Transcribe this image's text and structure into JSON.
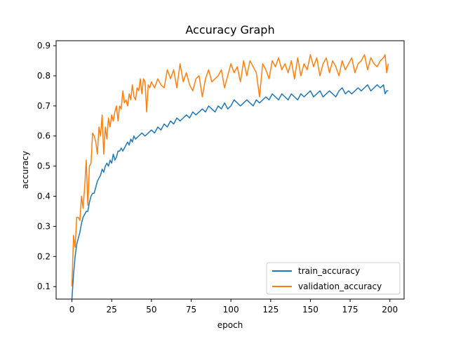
{
  "chart_data": {
    "type": "line",
    "title": "Accuracy Graph",
    "xlabel": "epoch",
    "ylabel": "accuracy",
    "xlim": [
      -9.95,
      208.95
    ],
    "ylim": [
      0.0585,
      0.9165
    ],
    "x_ticks": [
      0,
      25,
      50,
      75,
      100,
      125,
      150,
      175,
      200
    ],
    "y_ticks": [
      0.1,
      0.2,
      0.3,
      0.4,
      0.5,
      0.6,
      0.7,
      0.8,
      0.9
    ],
    "grid": false,
    "legend_position": "lower-right",
    "series": [
      {
        "name": "train_accuracy",
        "color": "#1f77b4",
        "x": [
          0,
          1,
          2,
          3,
          4,
          5,
          6,
          7,
          8,
          9,
          10,
          11,
          12,
          13,
          14,
          15,
          16,
          17,
          18,
          19,
          20,
          21,
          22,
          23,
          24,
          25,
          26,
          27,
          28,
          29,
          30,
          31,
          32,
          33,
          34,
          35,
          36,
          37,
          38,
          39,
          40,
          42,
          44,
          46,
          48,
          50,
          52,
          54,
          56,
          58,
          60,
          62,
          64,
          66,
          68,
          70,
          72,
          74,
          76,
          78,
          80,
          82,
          84,
          86,
          88,
          90,
          92,
          94,
          96,
          98,
          100,
          102,
          104,
          106,
          108,
          110,
          112,
          114,
          116,
          118,
          120,
          122,
          124,
          126,
          128,
          130,
          132,
          134,
          136,
          138,
          140,
          142,
          144,
          146,
          148,
          150,
          152,
          154,
          156,
          158,
          160,
          162,
          164,
          166,
          168,
          170,
          172,
          174,
          176,
          178,
          180,
          182,
          184,
          186,
          188,
          190,
          192,
          194,
          196,
          197,
          198,
          199
        ],
        "values": [
          0.06,
          0.14,
          0.2,
          0.24,
          0.26,
          0.28,
          0.31,
          0.33,
          0.34,
          0.35,
          0.35,
          0.38,
          0.4,
          0.41,
          0.41,
          0.43,
          0.45,
          0.46,
          0.47,
          0.49,
          0.48,
          0.5,
          0.51,
          0.5,
          0.52,
          0.51,
          0.54,
          0.52,
          0.53,
          0.55,
          0.55,
          0.56,
          0.55,
          0.56,
          0.57,
          0.58,
          0.57,
          0.59,
          0.58,
          0.6,
          0.59,
          0.6,
          0.61,
          0.6,
          0.61,
          0.62,
          0.61,
          0.63,
          0.62,
          0.64,
          0.63,
          0.65,
          0.64,
          0.66,
          0.65,
          0.66,
          0.67,
          0.66,
          0.68,
          0.67,
          0.68,
          0.69,
          0.68,
          0.7,
          0.69,
          0.68,
          0.7,
          0.69,
          0.71,
          0.69,
          0.7,
          0.72,
          0.71,
          0.7,
          0.71,
          0.72,
          0.71,
          0.7,
          0.72,
          0.71,
          0.72,
          0.73,
          0.72,
          0.74,
          0.73,
          0.72,
          0.74,
          0.73,
          0.72,
          0.74,
          0.73,
          0.72,
          0.74,
          0.73,
          0.74,
          0.75,
          0.73,
          0.74,
          0.75,
          0.73,
          0.74,
          0.75,
          0.74,
          0.73,
          0.75,
          0.76,
          0.74,
          0.75,
          0.74,
          0.75,
          0.76,
          0.75,
          0.76,
          0.77,
          0.75,
          0.76,
          0.77,
          0.76,
          0.77,
          0.74,
          0.75,
          0.75
        ]
      },
      {
        "name": "validation_accuracy",
        "color": "#ff7f0e",
        "x": [
          0,
          1,
          2,
          3,
          4,
          5,
          6,
          7,
          8,
          9,
          10,
          11,
          12,
          13,
          14,
          15,
          16,
          17,
          18,
          19,
          20,
          21,
          22,
          23,
          24,
          25,
          26,
          27,
          28,
          29,
          30,
          31,
          32,
          33,
          34,
          35,
          36,
          37,
          38,
          39,
          40,
          41,
          42,
          43,
          44,
          45,
          46,
          47,
          48,
          49,
          50,
          52,
          54,
          56,
          58,
          60,
          62,
          64,
          66,
          68,
          70,
          72,
          74,
          76,
          78,
          80,
          82,
          84,
          86,
          88,
          90,
          92,
          94,
          96,
          98,
          100,
          102,
          104,
          106,
          108,
          110,
          112,
          114,
          116,
          118,
          120,
          122,
          124,
          126,
          128,
          130,
          132,
          134,
          136,
          138,
          140,
          142,
          144,
          146,
          148,
          150,
          152,
          154,
          156,
          158,
          160,
          162,
          164,
          166,
          168,
          170,
          172,
          174,
          176,
          178,
          180,
          182,
          184,
          186,
          188,
          190,
          192,
          194,
          196,
          197,
          198,
          199
        ],
        "values": [
          0.1,
          0.27,
          0.23,
          0.33,
          0.33,
          0.32,
          0.4,
          0.36,
          0.43,
          0.52,
          0.37,
          0.5,
          0.51,
          0.61,
          0.6,
          0.58,
          0.54,
          0.63,
          0.6,
          0.67,
          0.54,
          0.63,
          0.59,
          0.66,
          0.63,
          0.67,
          0.65,
          0.68,
          0.7,
          0.65,
          0.7,
          0.69,
          0.75,
          0.71,
          0.72,
          0.7,
          0.74,
          0.72,
          0.77,
          0.73,
          0.72,
          0.76,
          0.75,
          0.79,
          0.74,
          0.79,
          0.78,
          0.68,
          0.77,
          0.76,
          0.78,
          0.76,
          0.79,
          0.77,
          0.76,
          0.82,
          0.79,
          0.82,
          0.76,
          0.84,
          0.78,
          0.81,
          0.77,
          0.75,
          0.79,
          0.8,
          0.73,
          0.79,
          0.82,
          0.78,
          0.79,
          0.8,
          0.82,
          0.76,
          0.8,
          0.84,
          0.81,
          0.83,
          0.78,
          0.85,
          0.8,
          0.85,
          0.83,
          0.81,
          0.73,
          0.84,
          0.82,
          0.79,
          0.85,
          0.83,
          0.86,
          0.82,
          0.84,
          0.81,
          0.85,
          0.79,
          0.86,
          0.8,
          0.84,
          0.82,
          0.87,
          0.83,
          0.86,
          0.8,
          0.84,
          0.86,
          0.81,
          0.85,
          0.83,
          0.8,
          0.85,
          0.82,
          0.84,
          0.86,
          0.81,
          0.84,
          0.85,
          0.87,
          0.82,
          0.86,
          0.84,
          0.83,
          0.85,
          0.86,
          0.87,
          0.81,
          0.84
        ]
      }
    ]
  }
}
